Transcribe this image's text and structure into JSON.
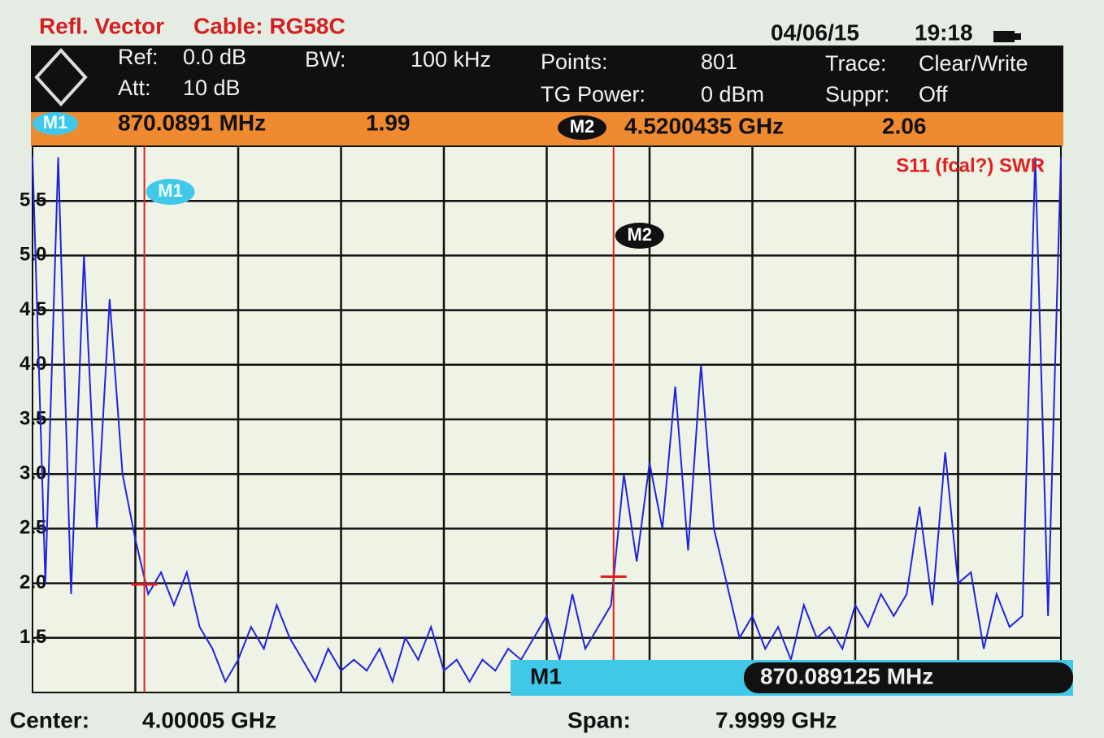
{
  "header": {
    "mode": "Refl. Vector",
    "cable": "Cable: RG58C",
    "date": "04/06/15",
    "time": "19:18"
  },
  "settings": [
    {
      "label": "Ref:",
      "value": "0.0 dB"
    },
    {
      "label": "Att:",
      "value": "10 dB"
    },
    {
      "label": "BW:",
      "value": "100 kHz"
    },
    {
      "label": "Points:",
      "value": "801"
    },
    {
      "label": "TG Power:",
      "value": "0 dBm"
    },
    {
      "label": "Trace:",
      "value": "Clear/Write"
    },
    {
      "label": "Suppr:",
      "value": "Off"
    }
  ],
  "readout": {
    "name": "M1",
    "value": "870.089125 MHz"
  },
  "footer": {
    "center_label": "Center:",
    "center": "4.00005 GHz",
    "span_label": "Span:",
    "span": "7.9999 GHz"
  },
  "chart_data": {
    "type": "line",
    "title": "S11 (fcal?) SWR",
    "color": "#2222dd",
    "x": [
      0.0,
      0.1,
      0.2,
      0.3,
      0.4,
      0.5,
      0.6,
      0.7,
      0.8,
      0.9,
      1.0,
      1.1,
      1.2,
      1.3,
      1.4,
      1.5,
      1.6,
      1.7,
      1.8,
      1.9,
      2.0,
      2.1,
      2.2,
      2.3,
      2.4,
      2.5,
      2.6,
      2.7,
      2.8,
      2.9,
      3.0,
      3.1,
      3.2,
      3.3,
      3.4,
      3.5,
      3.6,
      3.7,
      3.8,
      3.9,
      4.0,
      4.1,
      4.2,
      4.3,
      4.4,
      4.5,
      4.6,
      4.7,
      4.8,
      4.9,
      5.0,
      5.1,
      5.2,
      5.3,
      5.4,
      5.5,
      5.6,
      5.7,
      5.8,
      5.9,
      6.0,
      6.1,
      6.2,
      6.3,
      6.4,
      6.5,
      6.6,
      6.7,
      6.8,
      6.9,
      7.0,
      7.1,
      7.2,
      7.3,
      7.4,
      7.5,
      7.6,
      7.7,
      7.8,
      7.9,
      8.0
    ],
    "values": [
      5.9,
      2.0,
      5.9,
      1.9,
      5.0,
      2.5,
      4.6,
      3.0,
      2.4,
      1.9,
      2.1,
      1.8,
      2.1,
      1.6,
      1.4,
      1.1,
      1.3,
      1.6,
      1.4,
      1.8,
      1.5,
      1.3,
      1.1,
      1.4,
      1.2,
      1.3,
      1.2,
      1.4,
      1.1,
      1.5,
      1.3,
      1.6,
      1.2,
      1.3,
      1.1,
      1.3,
      1.2,
      1.4,
      1.3,
      1.5,
      1.7,
      1.3,
      1.9,
      1.4,
      1.6,
      1.8,
      3.0,
      2.2,
      3.1,
      2.5,
      3.8,
      2.3,
      4.0,
      2.5,
      2.0,
      1.5,
      1.7,
      1.4,
      1.6,
      1.3,
      1.8,
      1.5,
      1.6,
      1.4,
      1.8,
      1.6,
      1.9,
      1.7,
      1.9,
      2.7,
      1.8,
      3.2,
      2.0,
      2.1,
      1.4,
      1.9,
      1.6,
      1.7,
      5.9,
      1.7,
      5.9
    ],
    "xlim": [
      0.0,
      8.0
    ],
    "ylim": [
      1.0,
      6.0
    ],
    "yticks": [
      1.5,
      {
        "value": 2,
        "label": "2.0"
      },
      2.5,
      {
        "value": 3,
        "label": "3.0"
      },
      3.5,
      {
        "value": 4,
        "label": "4.0"
      },
      4.5,
      {
        "value": 5,
        "label": "5.0"
      },
      5.5
    ],
    "markers": [
      {
        "name": "M1",
        "x": 0.8700891,
        "x_label": "870.0891 MHz",
        "value": 1.99
      },
      {
        "name": "M2",
        "x": 4.5200435,
        "x_label": "4.5200435 GHz",
        "value": 2.06
      }
    ]
  }
}
